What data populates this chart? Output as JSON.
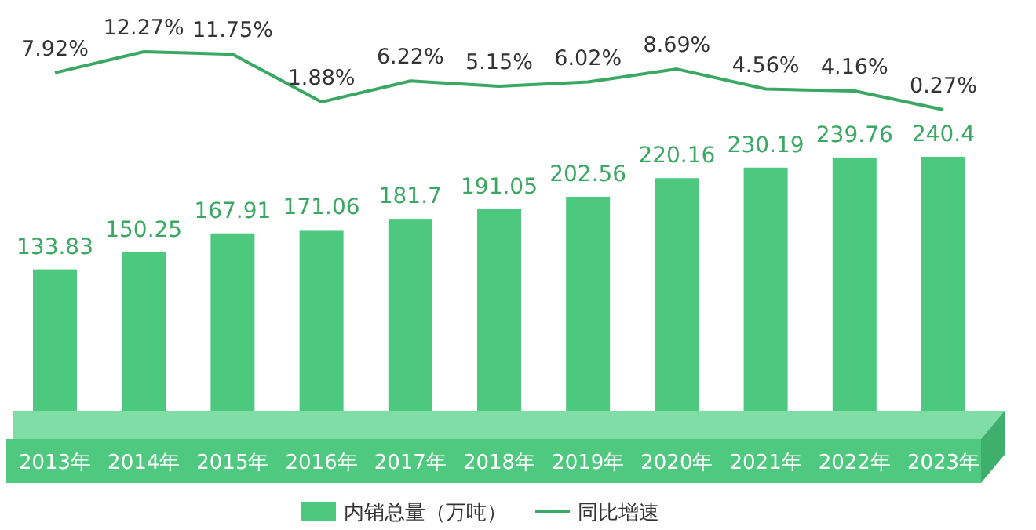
{
  "chart_data": [
    {
      "type": "bar",
      "categories": [
        "2013年",
        "2014年",
        "2015年",
        "2016年",
        "2017年",
        "2018年",
        "2019年",
        "2020年",
        "2021年",
        "2022年",
        "2023年"
      ],
      "series": [
        {
          "name": "内销总量（万吨）",
          "color": "#4cc97f",
          "values": [
            133.83,
            150.25,
            167.91,
            171.06,
            181.7,
            191.05,
            202.56,
            220.16,
            230.19,
            239.76,
            240.4
          ],
          "value_labels": [
            "133.83",
            "150.25",
            "167.91",
            "171.06",
            "181.7",
            "191.05",
            "202.56",
            "220.16",
            "230.19",
            "239.76",
            "240.4"
          ]
        }
      ],
      "tick_labels": "x",
      "legend": "bottom"
    },
    {
      "type": "line",
      "categories": [
        null,
        null,
        null,
        null,
        null,
        null,
        null,
        null,
        null,
        null,
        null
      ],
      "series": [
        {
          "name": "同比增速",
          "color": "#3aa862",
          "values": [
            7.92,
            12.27,
            11.75,
            1.88,
            6.22,
            5.15,
            6.02,
            8.69,
            4.56,
            4.16,
            0.27
          ],
          "value_labels": [
            "7.92%",
            "12.27%",
            "11.75%",
            "1.88%",
            "6.22%",
            "5.15%",
            "6.02%",
            "8.69%",
            "4.56%",
            "4.16%",
            "0.27%"
          ]
        }
      ],
      "legend": "bottom"
    }
  ]
}
